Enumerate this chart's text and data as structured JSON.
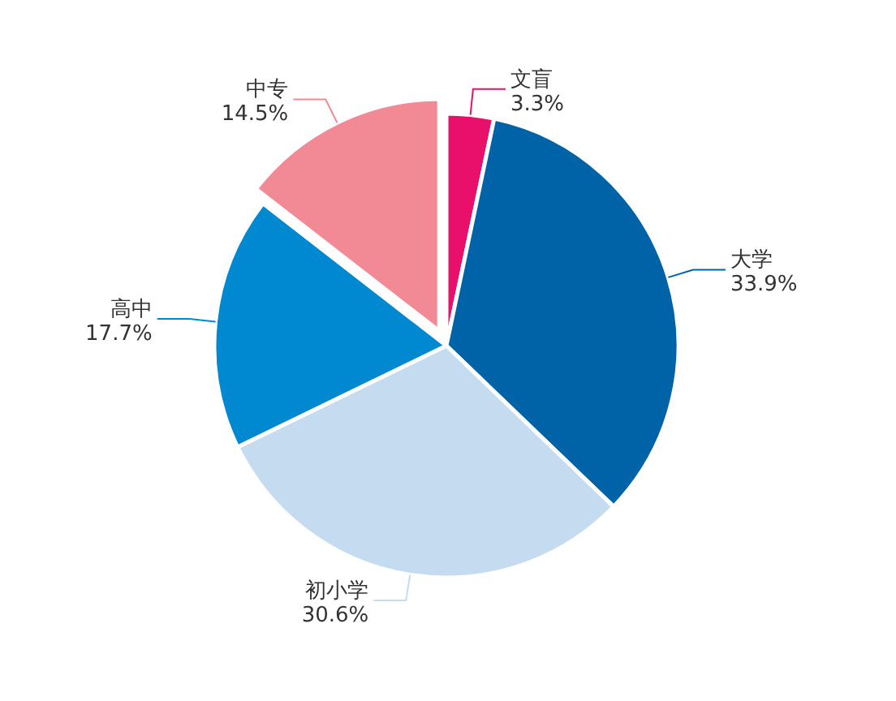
{
  "chart_data": {
    "type": "pie",
    "categories": [
      "文盲",
      "大学",
      "初小学",
      "高中",
      "中专"
    ],
    "values": [
      3.3,
      33.9,
      30.6,
      17.7,
      14.5
    ],
    "colors": [
      "#e8106a",
      "#0063a8",
      "#c5dcf0",
      "#0088d0",
      "#f28a96"
    ],
    "value_labels": [
      "3.3%",
      "33.9%",
      "30.6%",
      "17.7%",
      "14.5%"
    ]
  }
}
